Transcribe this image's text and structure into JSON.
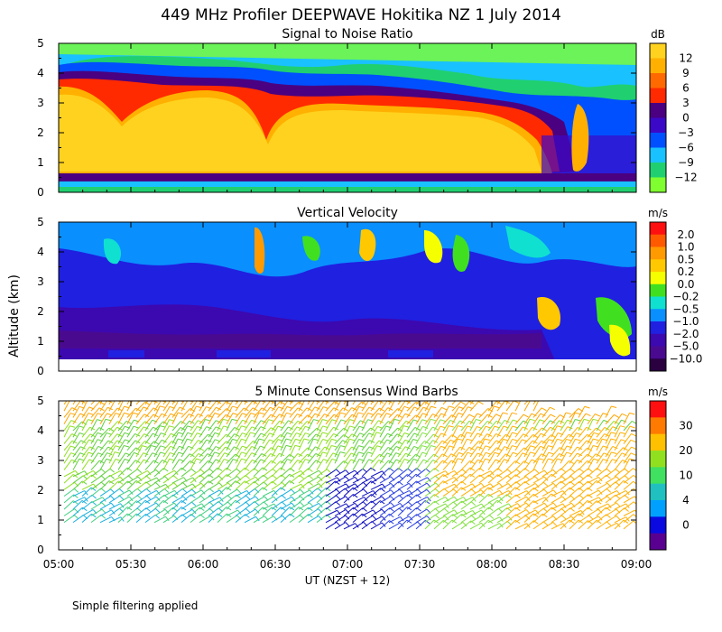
{
  "title": "449 MHz Profiler DEEPWAVE Hokitika NZ   1 July 2014",
  "ylabel": "Altitude (km)",
  "xlabel": "UT  (NZST + 12)",
  "note": "Simple filtering applied",
  "time_ticks": [
    "05:00",
    "05:30",
    "06:00",
    "06:30",
    "07:00",
    "07:30",
    "08:00",
    "08:30",
    "09:00"
  ],
  "altitude_ticks": [
    "0",
    "1",
    "2",
    "3",
    "4",
    "5"
  ],
  "chart_data": [
    {
      "type": "heatmap",
      "title": "Signal to Noise Ratio",
      "units": "dB",
      "xlim": [
        "05:00",
        "09:00"
      ],
      "ylim": [
        0,
        5
      ],
      "colorbar": {
        "labels": [
          "12",
          "9",
          "6",
          "3",
          "0",
          "−3",
          "−6",
          "−9",
          "−12"
        ],
        "colors": [
          "#ffd21f",
          "#ffb000",
          "#ff6a00",
          "#ff2a00",
          "#4a0080",
          "#3c08c8",
          "#0050ff",
          "#19c1ff",
          "#20d070",
          "#80ff30"
        ]
      },
      "description_values": {
        "strong_layer_km": [
          0.6,
          3.0
        ],
        "strong_layer_dB": 12
      }
    },
    {
      "type": "heatmap",
      "title": "Vertical Velocity",
      "units": "m/s",
      "xlim": [
        "05:00",
        "09:00"
      ],
      "ylim": [
        0,
        5
      ],
      "colorbar": {
        "labels": [
          "2.0",
          "1.0",
          "0.5",
          "0.2",
          "0.0",
          "−0.2",
          "−0.5",
          "−1.0",
          "−2.0",
          "−5.0",
          "−10.0"
        ],
        "colors": [
          "#ff1010",
          "#ff5a00",
          "#ff9a00",
          "#ffc800",
          "#f5ff00",
          "#40e020",
          "#10e0d0",
          "#0a8fff",
          "#2020e0",
          "#3c08b0",
          "#4a0a90",
          "#2a0040"
        ]
      }
    },
    {
      "type": "scatter",
      "title": "5 Minute Consensus Wind Barbs",
      "units": "m/s",
      "xlim": [
        "05:00",
        "09:00"
      ],
      "ylim": [
        0,
        5
      ],
      "colorbar": {
        "labels": [
          "30",
          "20",
          "10",
          "4",
          "0"
        ],
        "colors": [
          "#ff1010",
          "#ff7a00",
          "#ffc000",
          "#90e020",
          "#40e060",
          "#20c0c0",
          "#00a0ff",
          "#0a0ae0",
          "#5a0090"
        ]
      }
    }
  ]
}
